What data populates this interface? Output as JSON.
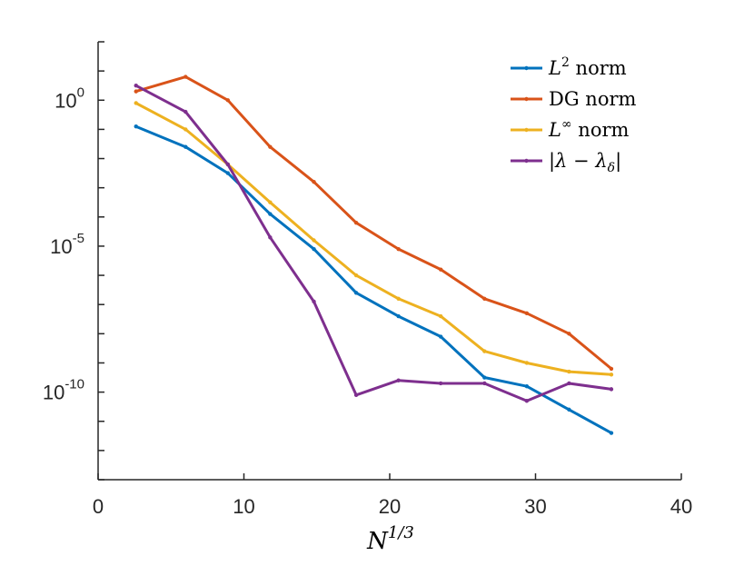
{
  "chart_data": {
    "type": "line",
    "title": "",
    "xlabel": {
      "base": "N",
      "exp": "1/3"
    },
    "ylabel": "",
    "xlim": [
      0,
      40
    ],
    "ylim_log10": [
      -13,
      2
    ],
    "yscale": "log",
    "x_ticks": [
      {
        "value": 0,
        "label": "0"
      },
      {
        "value": 10,
        "label": "10"
      },
      {
        "value": 20,
        "label": "20"
      },
      {
        "value": 30,
        "label": "30"
      },
      {
        "value": 40,
        "label": "40"
      }
    ],
    "y_ticks": [
      {
        "exp_value": 0,
        "base": "10",
        "exp": "0"
      },
      {
        "exp_value": -5,
        "base": "10",
        "exp": "-5"
      },
      {
        "exp_value": -10,
        "base": "10",
        "exp": "-10"
      }
    ],
    "grid": false,
    "legend_position": "top-right",
    "x": [
      2.6,
      6.0,
      8.9,
      11.8,
      14.8,
      17.7,
      20.6,
      23.5,
      26.5,
      29.4,
      32.3,
      35.2
    ],
    "series": [
      {
        "name": "L^2 norm",
        "legend": {
          "symbol": "L",
          "sup": "2",
          "text": "norm"
        },
        "color": "#0072BD",
        "log10_values": [
          -0.9,
          -1.6,
          -2.5,
          -3.9,
          -5.1,
          -6.6,
          -7.4,
          -8.1,
          -9.5,
          -9.8,
          -10.6,
          -11.4
        ]
      },
      {
        "name": "DG norm",
        "legend": {
          "symbol": "",
          "sup": "",
          "text": "DG norm"
        },
        "color": "#D95319",
        "log10_values": [
          0.3,
          0.8,
          0.0,
          -1.6,
          -2.8,
          -4.2,
          -5.1,
          -5.8,
          -6.8,
          -7.3,
          -8.0,
          -9.2
        ]
      },
      {
        "name": "L^inf norm",
        "legend": {
          "symbol": "L",
          "sup": "∞",
          "text": "norm"
        },
        "color": "#EDB120",
        "log10_values": [
          -0.1,
          -1.0,
          -2.2,
          -3.5,
          -4.8,
          -6.0,
          -6.8,
          -7.4,
          -8.6,
          -9.0,
          -9.3,
          -9.4
        ]
      },
      {
        "name": "|lambda - lambda_delta|",
        "legend": {
          "symbol": "|λ − λ",
          "sub": "δ",
          "text": "|"
        },
        "color": "#7E2F8E",
        "log10_values": [
          0.5,
          -0.4,
          -2.2,
          -4.7,
          -6.9,
          -10.1,
          -9.6,
          -9.7,
          -9.7,
          -10.3,
          -9.7,
          -9.9
        ]
      }
    ]
  }
}
